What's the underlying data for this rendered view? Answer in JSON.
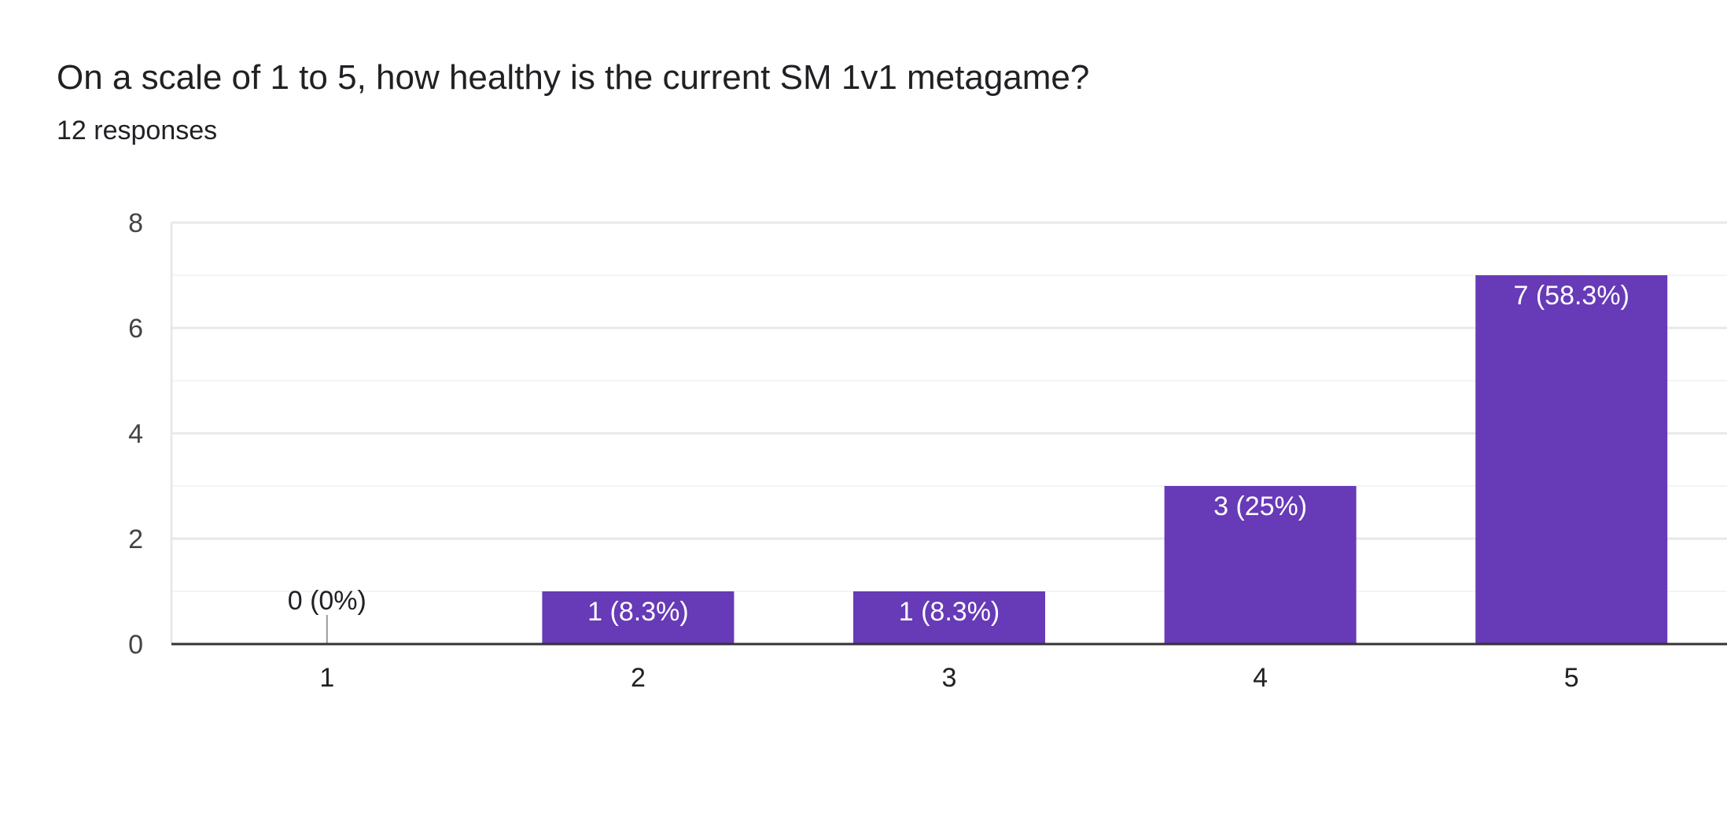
{
  "question": {
    "title": "On a scale of 1 to 5, how healthy is the current SM 1v1 metagame?",
    "response_count": "12 responses"
  },
  "colors": {
    "bar": "#673AB7",
    "bar_label_inside": "#ffffff",
    "bar_label_outside": "#202124",
    "axis_text": "#444444",
    "grid_major": "#e8e8e8",
    "grid_minor": "#f4f4f4",
    "baseline": "#333333",
    "zero_marker": "#999999"
  },
  "chart_data": {
    "type": "bar",
    "categories": [
      "1",
      "2",
      "3",
      "4",
      "5"
    ],
    "values": [
      0,
      1,
      1,
      3,
      7
    ],
    "data_labels": [
      "0 (0%)",
      "1 (8.3%)",
      "1 (8.3%)",
      "3 (25%)",
      "7 (58.3%)"
    ],
    "yticks": [
      "0",
      "2",
      "4",
      "6",
      "8"
    ],
    "ylim": [
      0,
      8
    ],
    "grid": true,
    "legend": "none"
  }
}
